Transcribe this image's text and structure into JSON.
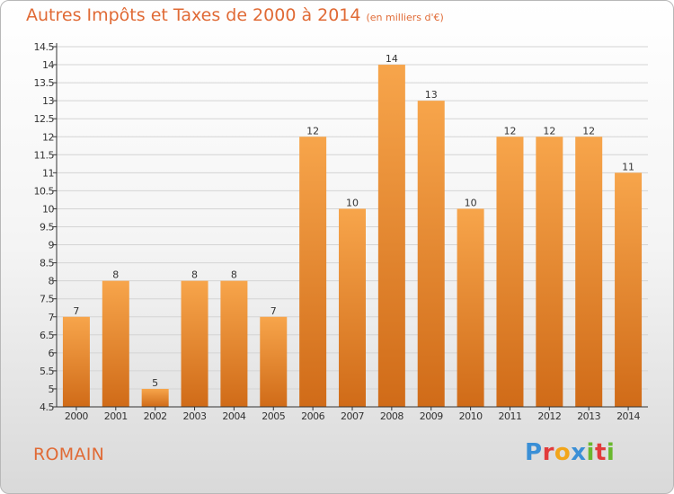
{
  "header": {
    "title": "Autres Impôts et Taxes de 2000 à 2014",
    "unit": "(en milliers d'€)"
  },
  "footer": {
    "commune": "ROMAIN",
    "logo_letters": [
      {
        "char": "P",
        "color": "#3a8fd6"
      },
      {
        "char": "r",
        "color": "#e23b3b"
      },
      {
        "char": "o",
        "color": "#f2a51a"
      },
      {
        "char": "x",
        "color": "#3a8fd6"
      },
      {
        "char": "i",
        "color": "#6ab82e"
      },
      {
        "char": "t",
        "color": "#e23b3b"
      },
      {
        "char": "i",
        "color": "#6ab82e"
      }
    ]
  },
  "colors": {
    "title": "#e06a35",
    "bar_light": "#f7a54b",
    "bar_dark": "#d06b18",
    "axis": "#333333",
    "grid": "#d4d4d4"
  },
  "chart_data": {
    "type": "bar",
    "categories": [
      "2000",
      "2001",
      "2002",
      "2003",
      "2004",
      "2005",
      "2006",
      "2007",
      "2008",
      "2009",
      "2010",
      "2011",
      "2012",
      "2013",
      "2014"
    ],
    "values": [
      7,
      8,
      5,
      8,
      8,
      7,
      12,
      10,
      14,
      13,
      10,
      12,
      12,
      12,
      11
    ],
    "ylim": [
      4.5,
      14.5
    ],
    "yticks": [
      "4.5",
      "5",
      "5.5",
      "6",
      "6.5",
      "7",
      "7.5",
      "8",
      "8.5",
      "9",
      "9.5",
      "10",
      "10.5",
      "11",
      "11.5",
      "12",
      "12.5",
      "13",
      "13.5",
      "14",
      "14.5"
    ],
    "grid": true
  }
}
